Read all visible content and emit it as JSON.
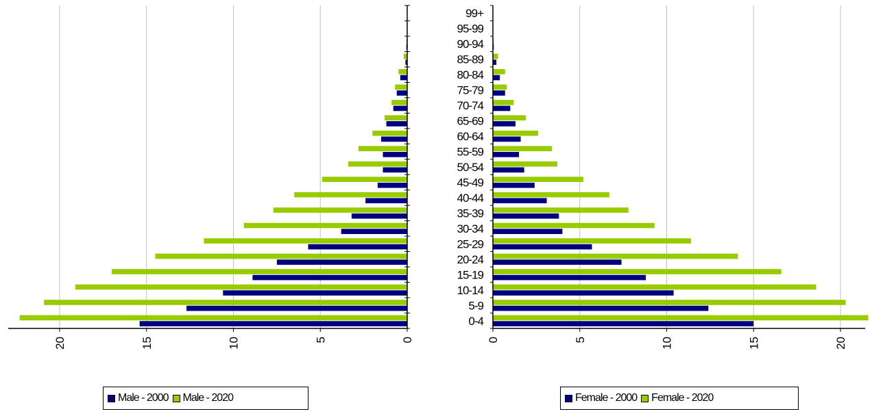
{
  "chart_data": [
    {
      "type": "bar",
      "orientation": "horizontal",
      "direction": "reversed",
      "categories": [
        "0-4",
        "5-9",
        "10-14",
        "15-19",
        "20-24",
        "25-29",
        "30-34",
        "35-39",
        "40-44",
        "45-49",
        "50-54",
        "55-59",
        "60-64",
        "65-69",
        "70-74",
        "75-79",
        "80-84",
        "85-89",
        "90-94",
        "95-99",
        "99+"
      ],
      "series": [
        {
          "name": "Male - 2000",
          "color": "#000080",
          "values": [
            15.4,
            12.7,
            10.6,
            8.9,
            7.5,
            5.7,
            3.8,
            3.2,
            2.4,
            1.7,
            1.4,
            1.4,
            1.5,
            1.2,
            0.8,
            0.6,
            0.4,
            0.1,
            0.05,
            0.02,
            0.0
          ]
        },
        {
          "name": "Male - 2020",
          "color": "#99cc00",
          "values": [
            22.3,
            20.9,
            19.1,
            17.0,
            14.5,
            11.7,
            9.4,
            7.7,
            6.5,
            4.9,
            3.4,
            2.8,
            2.0,
            1.3,
            0.9,
            0.7,
            0.5,
            0.2,
            0.05,
            0.03,
            0.0
          ]
        }
      ],
      "xlim": [
        0,
        23
      ],
      "xticks": [
        "20",
        "15",
        "10",
        "5",
        "0"
      ],
      "grid": true,
      "legend_position": "bottom"
    },
    {
      "type": "bar",
      "orientation": "horizontal",
      "categories": [
        "0-4",
        "5-9",
        "10-14",
        "15-19",
        "20-24",
        "25-29",
        "30-34",
        "35-39",
        "40-44",
        "45-49",
        "50-54",
        "55-59",
        "60-64",
        "65-69",
        "70-74",
        "75-79",
        "80-84",
        "85-89",
        "90-94",
        "95-99",
        "99+"
      ],
      "series": [
        {
          "name": "Female - 2000",
          "color": "#000080",
          "values": [
            15.0,
            12.4,
            10.4,
            8.8,
            7.4,
            5.7,
            4.0,
            3.8,
            3.1,
            2.4,
            1.8,
            1.5,
            1.6,
            1.3,
            1.0,
            0.7,
            0.4,
            0.2,
            0.05,
            0.02,
            0.0
          ]
        },
        {
          "name": "Female - 2020",
          "color": "#99cc00",
          "values": [
            21.6,
            20.3,
            18.6,
            16.6,
            14.1,
            11.4,
            9.3,
            7.8,
            6.7,
            5.2,
            3.7,
            3.4,
            2.6,
            1.9,
            1.2,
            0.8,
            0.7,
            0.3,
            0.05,
            0.03,
            0.0
          ]
        }
      ],
      "xlim": [
        0,
        23
      ],
      "xticks": [
        "0",
        "5",
        "10",
        "15",
        "20"
      ],
      "grid": true,
      "legend_position": "bottom"
    }
  ]
}
